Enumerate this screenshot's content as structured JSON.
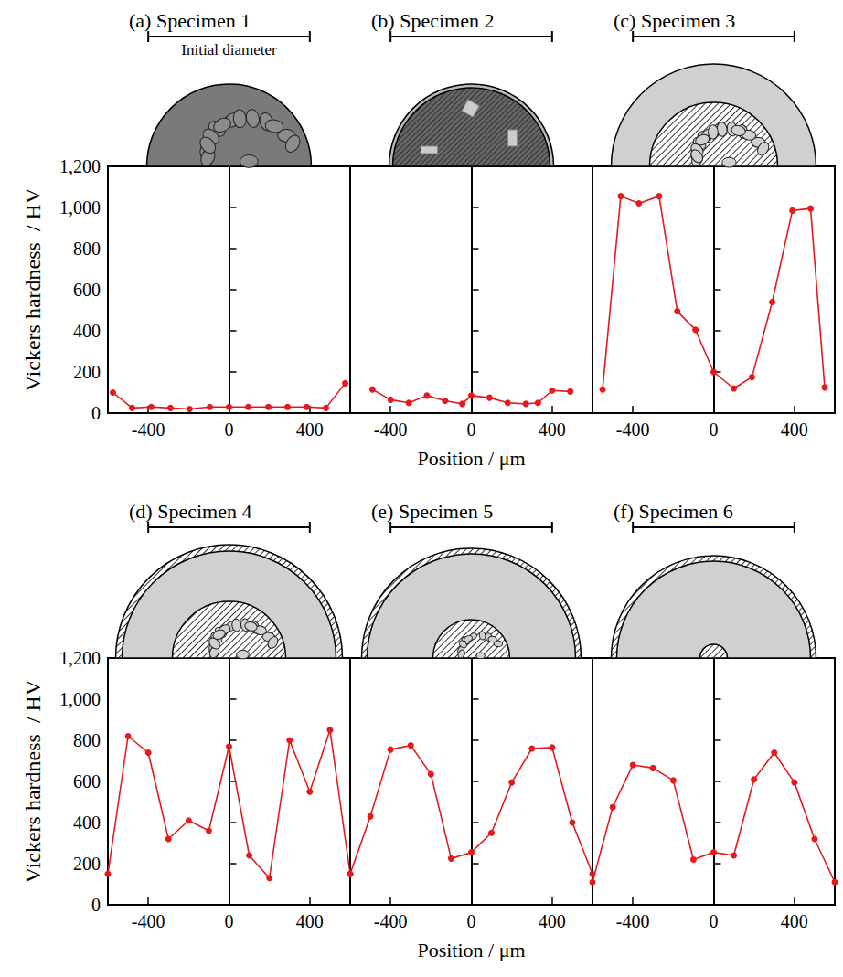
{
  "chart_data": [
    {
      "type": "line",
      "title": "(a) Specimen 1",
      "annotation": "Initial diameter",
      "initial_diameter": [
        -400,
        400
      ],
      "ylabel": "Vickers hardness  / HV",
      "x": [
        -575,
        -480,
        -385,
        -290,
        -195,
        -95,
        0,
        95,
        195,
        290,
        385,
        480,
        575
      ],
      "values": [
        100,
        25,
        30,
        25,
        20,
        30,
        30,
        30,
        30,
        30,
        30,
        25,
        145
      ],
      "color": "#e41a1c",
      "marker": "circle",
      "line_style": "solid",
      "xlim": [
        -600,
        600
      ],
      "xticks": [
        -400,
        0,
        400
      ],
      "ylim": [
        0,
        1200
      ],
      "yticks": [
        0,
        200,
        400,
        600,
        800,
        1000,
        1200
      ],
      "grid": false
    },
    {
      "type": "line",
      "title": "(b) Specimen 2",
      "initial_diameter": [
        -400,
        400
      ],
      "xlabel": "Position / μm",
      "x": [
        -490,
        -400,
        -310,
        -220,
        -130,
        -45,
        0,
        90,
        180,
        270,
        330,
        400,
        490
      ],
      "values": [
        115,
        65,
        50,
        85,
        60,
        45,
        85,
        75,
        50,
        45,
        50,
        110,
        105
      ],
      "color": "#e41a1c",
      "marker": "circle",
      "line_style": "solid",
      "xlim": [
        -600,
        600
      ],
      "xticks": [
        -400,
        0,
        400
      ],
      "ylim": [
        0,
        1200
      ],
      "yticks": [
        0,
        200,
        400,
        600,
        800,
        1000,
        1200
      ],
      "grid": false,
      "tick_labels": "x"
    },
    {
      "type": "line",
      "title": "(c) Specimen 3",
      "initial_diameter": [
        -400,
        400
      ],
      "x": [
        -550,
        -460,
        -370,
        -270,
        -180,
        -90,
        0,
        100,
        190,
        290,
        390,
        480,
        550
      ],
      "values": [
        115,
        1055,
        1020,
        1055,
        495,
        405,
        200,
        120,
        175,
        540,
        985,
        995,
        125
      ],
      "color": "#e41a1c",
      "marker": "circle",
      "line_style": "solid",
      "xlim": [
        -600,
        600
      ],
      "xticks": [
        -400,
        0,
        400
      ],
      "ylim": [
        0,
        1200
      ],
      "yticks": [
        0,
        200,
        400,
        600,
        800,
        1000,
        1200
      ],
      "grid": false,
      "tick_labels": "x"
    },
    {
      "type": "line",
      "title": "(d) Specimen 4",
      "initial_diameter": [
        -400,
        400
      ],
      "ylabel": "Vickers hardness  / HV",
      "x": [
        -600,
        -500,
        -400,
        -300,
        -200,
        -100,
        0,
        100,
        200,
        300,
        400,
        500,
        600
      ],
      "values": [
        150,
        820,
        740,
        320,
        410,
        360,
        770,
        240,
        130,
        800,
        550,
        850,
        150
      ],
      "color": "#e41a1c",
      "marker": "circle",
      "line_style": "solid",
      "xlim": [
        -600,
        600
      ],
      "xticks": [
        -400,
        0,
        400
      ],
      "ylim": [
        0,
        1200
      ],
      "yticks": [
        0,
        200,
        400,
        600,
        800,
        1000,
        1200
      ],
      "grid": false
    },
    {
      "type": "line",
      "title": "(e) Specimen 5",
      "initial_diameter": [
        -400,
        400
      ],
      "xlabel": "Position / μm",
      "x": [
        -600,
        -500,
        -400,
        -300,
        -200,
        -100,
        0,
        100,
        200,
        300,
        400,
        500,
        600
      ],
      "values": [
        150,
        430,
        755,
        775,
        635,
        225,
        255,
        350,
        595,
        760,
        765,
        400,
        150
      ],
      "color": "#e41a1c",
      "marker": "circle",
      "line_style": "solid",
      "xlim": [
        -600,
        600
      ],
      "xticks": [
        -400,
        0,
        400
      ],
      "ylim": [
        0,
        1200
      ],
      "yticks": [
        0,
        200,
        400,
        600,
        800,
        1000,
        1200
      ],
      "grid": false,
      "tick_labels": "x"
    },
    {
      "type": "line",
      "title": "(f) Specimen 6",
      "initial_diameter": [
        -400,
        400
      ],
      "x": [
        -600,
        -500,
        -400,
        -300,
        -200,
        -100,
        0,
        100,
        200,
        300,
        400,
        500,
        600
      ],
      "values": [
        110,
        475,
        680,
        665,
        605,
        220,
        255,
        240,
        610,
        740,
        595,
        320,
        110
      ],
      "color": "#e41a1c",
      "marker": "circle",
      "line_style": "solid",
      "xlim": [
        -600,
        600
      ],
      "xticks": [
        -400,
        0,
        400
      ],
      "ylim": [
        0,
        1200
      ],
      "yticks": [
        0,
        200,
        400,
        600,
        800,
        1000,
        1200
      ],
      "grid": false,
      "tick_labels": "x"
    }
  ]
}
